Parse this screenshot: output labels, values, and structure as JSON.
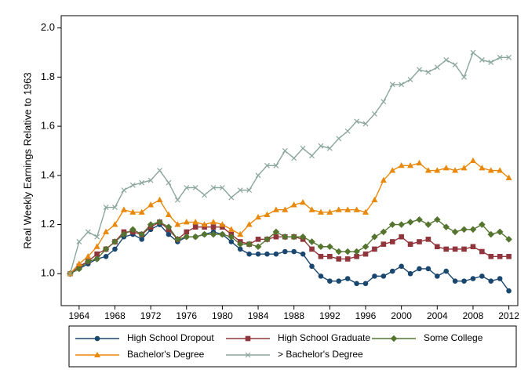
{
  "chart_data": {
    "type": "line",
    "y_label": "Real Weekly Earnings Relative to 1963",
    "x": [
      1963,
      1964,
      1965,
      1966,
      1967,
      1968,
      1969,
      1970,
      1971,
      1972,
      1973,
      1974,
      1975,
      1976,
      1977,
      1978,
      1979,
      1980,
      1981,
      1982,
      1983,
      1984,
      1985,
      1986,
      1987,
      1988,
      1989,
      1990,
      1991,
      1992,
      1993,
      1994,
      1995,
      1996,
      1997,
      1998,
      1999,
      2000,
      2001,
      2002,
      2003,
      2004,
      2005,
      2006,
      2007,
      2008,
      2009,
      2010,
      2011,
      2012
    ],
    "xlim": [
      1962,
      2013
    ],
    "xticks": [
      1964,
      1968,
      1972,
      1976,
      1980,
      1984,
      1988,
      1992,
      1996,
      2000,
      2004,
      2008,
      2012
    ],
    "ylim": [
      0.87,
      2.05
    ],
    "yticks": [
      {
        "value": 1.0,
        "label": "1.0"
      },
      1.2,
      1.4,
      1.6,
      1.8,
      {
        "value": 2.0,
        "label": "2.0"
      }
    ],
    "grid": false,
    "legend": "bottom",
    "series": [
      {
        "name": "High School Dropout",
        "color": "#1a476f",
        "marker": "circle",
        "values": [
          1.0,
          1.02,
          1.04,
          1.06,
          1.07,
          1.1,
          1.15,
          1.16,
          1.14,
          1.18,
          1.2,
          1.16,
          1.13,
          1.15,
          1.15,
          1.16,
          1.17,
          1.16,
          1.13,
          1.1,
          1.08,
          1.08,
          1.08,
          1.08,
          1.09,
          1.09,
          1.08,
          1.03,
          0.99,
          0.97,
          0.97,
          0.98,
          0.96,
          0.96,
          0.99,
          0.99,
          1.01,
          1.03,
          1.0,
          1.02,
          1.02,
          0.99,
          1.01,
          0.97,
          0.97,
          0.98,
          0.99,
          0.97,
          0.98,
          0.93
        ]
      },
      {
        "name": "High School Graduate",
        "color": "#90353b",
        "marker": "square",
        "values": [
          1.0,
          1.03,
          1.05,
          1.08,
          1.1,
          1.13,
          1.17,
          1.17,
          1.16,
          1.19,
          1.21,
          1.18,
          1.14,
          1.17,
          1.19,
          1.19,
          1.19,
          1.19,
          1.16,
          1.13,
          1.12,
          1.14,
          1.14,
          1.15,
          1.15,
          1.15,
          1.14,
          1.1,
          1.07,
          1.07,
          1.06,
          1.06,
          1.07,
          1.08,
          1.1,
          1.12,
          1.13,
          1.15,
          1.12,
          1.13,
          1.14,
          1.11,
          1.1,
          1.1,
          1.1,
          1.11,
          1.09,
          1.07,
          1.07,
          1.07
        ]
      },
      {
        "name": "Some College",
        "color": "#55752f",
        "marker": "diamond",
        "values": [
          1.0,
          1.02,
          1.05,
          1.06,
          1.1,
          1.13,
          1.16,
          1.18,
          1.16,
          1.2,
          1.21,
          1.19,
          1.14,
          1.15,
          1.15,
          1.16,
          1.16,
          1.16,
          1.15,
          1.12,
          1.12,
          1.11,
          1.14,
          1.17,
          1.15,
          1.15,
          1.15,
          1.13,
          1.11,
          1.11,
          1.09,
          1.09,
          1.09,
          1.11,
          1.15,
          1.17,
          1.2,
          1.2,
          1.21,
          1.22,
          1.2,
          1.22,
          1.19,
          1.17,
          1.18,
          1.18,
          1.2,
          1.16,
          1.17,
          1.14
        ]
      },
      {
        "name": "Bachelor's Degree",
        "color": "#e8890c",
        "marker": "triangle",
        "values": [
          1.0,
          1.04,
          1.07,
          1.11,
          1.17,
          1.2,
          1.26,
          1.25,
          1.25,
          1.28,
          1.3,
          1.24,
          1.2,
          1.21,
          1.21,
          1.2,
          1.21,
          1.2,
          1.18,
          1.16,
          1.2,
          1.23,
          1.24,
          1.26,
          1.26,
          1.28,
          1.29,
          1.26,
          1.25,
          1.25,
          1.26,
          1.26,
          1.26,
          1.25,
          1.3,
          1.38,
          1.42,
          1.44,
          1.44,
          1.45,
          1.42,
          1.42,
          1.43,
          1.42,
          1.43,
          1.46,
          1.43,
          1.42,
          1.42,
          1.39
        ]
      },
      {
        "name": "> Bachelor's Degree",
        "color": "#8aa69c",
        "marker": "x",
        "values": [
          1.0,
          1.13,
          1.17,
          1.15,
          1.27,
          1.27,
          1.34,
          1.36,
          1.37,
          1.38,
          1.42,
          1.37,
          1.3,
          1.35,
          1.35,
          1.32,
          1.35,
          1.35,
          1.31,
          1.34,
          1.34,
          1.4,
          1.44,
          1.44,
          1.5,
          1.47,
          1.51,
          1.48,
          1.52,
          1.51,
          1.55,
          1.58,
          1.62,
          1.61,
          1.65,
          1.7,
          1.77,
          1.77,
          1.79,
          1.83,
          1.82,
          1.84,
          1.87,
          1.85,
          1.8,
          1.9,
          1.87,
          1.86,
          1.88,
          1.88
        ]
      }
    ]
  }
}
